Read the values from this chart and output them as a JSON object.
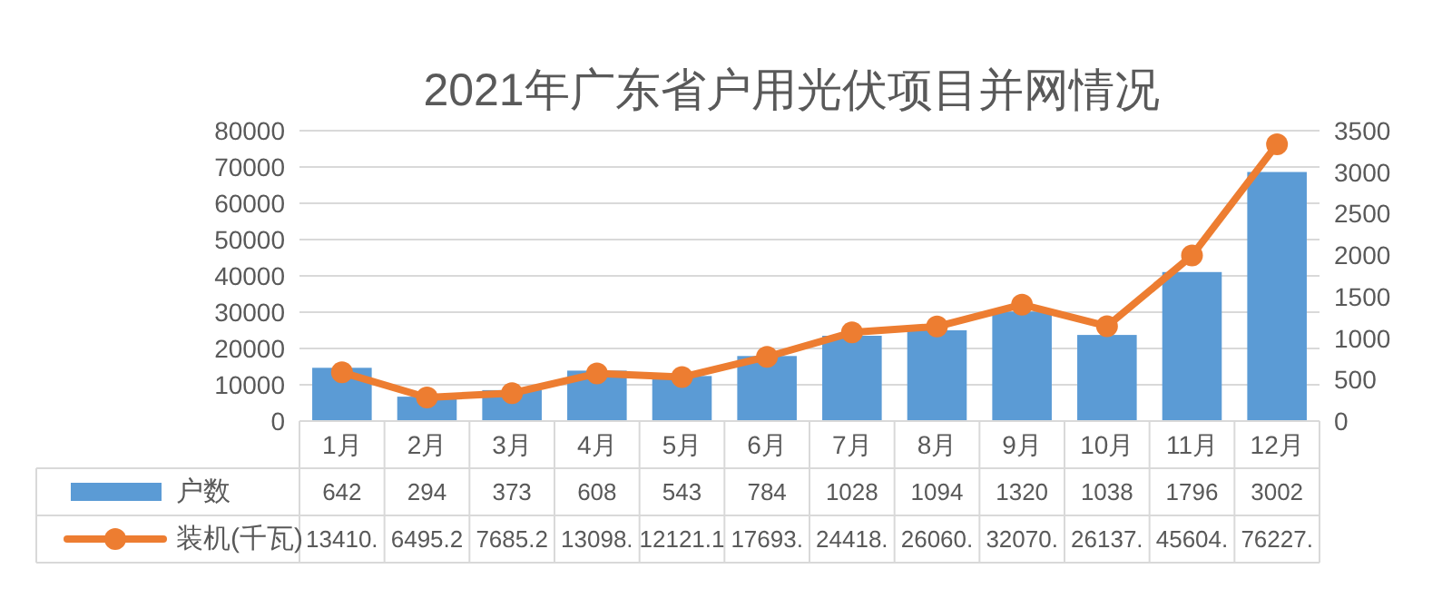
{
  "chart_data": {
    "type": "bar",
    "title": "2021年广东省户用光伏项目并网情况",
    "categories": [
      "1月",
      "2月",
      "3月",
      "4月",
      "5月",
      "6月",
      "7月",
      "8月",
      "9月",
      "10月",
      "11月",
      "12月"
    ],
    "series": [
      {
        "name": "户数",
        "axis": "y2",
        "color": "#5b9bd5",
        "values": [
          642,
          294,
          373,
          608,
          543,
          784,
          1028,
          1094,
          1320,
          1038,
          1796,
          3002
        ],
        "value_labels": [
          "642",
          "294",
          "373",
          "608",
          "543",
          "784",
          "1028",
          "1094",
          "1320",
          "1038",
          "1796",
          "3002"
        ]
      },
      {
        "name": "装机(千瓦)",
        "type": "line",
        "color": "#ed7d31",
        "values": [
          13410,
          6495.2,
          7685.2,
          13098,
          12121.1,
          17693,
          24418,
          26060,
          32070,
          26137,
          45604,
          76227
        ],
        "value_labels": [
          "13410.",
          "6495.2",
          "7685.2",
          "13098.",
          "12121.1",
          "17693.",
          "24418.",
          "26060.",
          "32070.",
          "26137.",
          "45604.",
          "76227."
        ]
      }
    ],
    "ylim": [
      0,
      80000
    ],
    "yticks": [
      0,
      10000,
      20000,
      30000,
      40000,
      50000,
      60000,
      70000,
      80000
    ],
    "y2lim": [
      0,
      3500
    ],
    "y2ticks": [
      0,
      500,
      1000,
      1500,
      2000,
      2500,
      3000,
      3500
    ],
    "grid": "y",
    "legend": "bottom",
    "marker": "circle"
  }
}
